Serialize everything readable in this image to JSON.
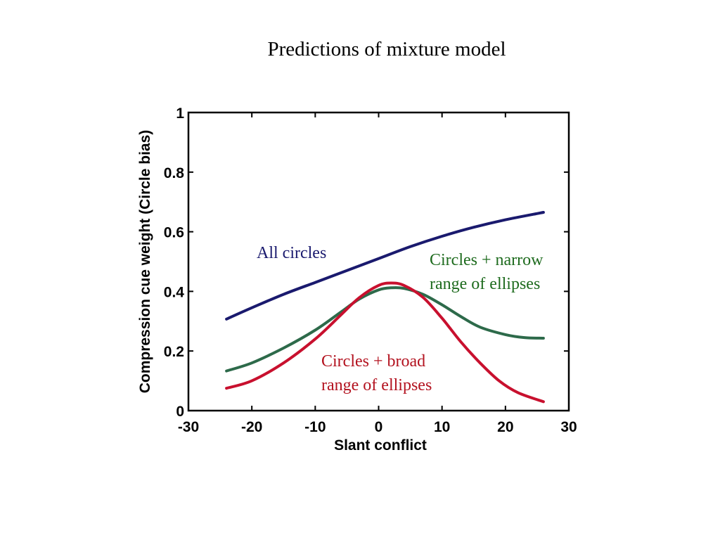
{
  "page": {
    "title": "Predictions of mixture model"
  },
  "chart_data": {
    "type": "line",
    "title": "Predictions of mixture model",
    "xlabel": "Slant conflict",
    "ylabel": "Compression cue weight (Circle bias)",
    "xlim": [
      -30,
      30
    ],
    "ylim": [
      0,
      1
    ],
    "xticks": [
      -30,
      -20,
      -10,
      0,
      10,
      20,
      30
    ],
    "yticks": [
      0,
      0.2,
      0.4,
      0.6,
      0.8,
      1
    ],
    "xtick_labels": [
      "-30",
      "-20",
      "-10",
      "0",
      "10",
      "20",
      "30"
    ],
    "ytick_labels": [
      "0",
      "0.2",
      "0.4",
      "0.6",
      "0.8",
      "1"
    ],
    "grid": false,
    "legend": "none",
    "series": [
      {
        "name": "All circles",
        "color": "#1a1a6e",
        "x": [
          -24,
          -20,
          -15,
          -10,
          -5,
          0,
          5,
          10,
          15,
          20,
          26
        ],
        "y": [
          0.307,
          0.345,
          0.39,
          0.43,
          0.47,
          0.51,
          0.55,
          0.585,
          0.615,
          0.64,
          0.665
        ]
      },
      {
        "name": "Circles + narrow range of ellipses",
        "color": "#2d6a4a",
        "x": [
          -24,
          -20,
          -15,
          -10,
          -6,
          -3,
          0,
          2,
          4,
          7,
          10,
          13,
          16,
          20,
          23,
          26
        ],
        "y": [
          0.133,
          0.16,
          0.21,
          0.27,
          0.33,
          0.375,
          0.405,
          0.412,
          0.41,
          0.39,
          0.355,
          0.315,
          0.28,
          0.255,
          0.245,
          0.243
        ]
      },
      {
        "name": "Circles + broad range of ellipses",
        "color": "#c8102e",
        "x": [
          -24,
          -20,
          -15,
          -10,
          -6,
          -3,
          0,
          2,
          4,
          7,
          10,
          13,
          16,
          19,
          22,
          26
        ],
        "y": [
          0.075,
          0.1,
          0.16,
          0.24,
          0.32,
          0.38,
          0.42,
          0.428,
          0.42,
          0.38,
          0.31,
          0.23,
          0.16,
          0.1,
          0.06,
          0.03
        ]
      }
    ],
    "annotations": [
      {
        "text": "All circles",
        "lines": [
          "All circles"
        ],
        "color": "#1a1a6e"
      },
      {
        "text": "Circles + narrow range of ellipses",
        "lines": [
          "Circles + narrow",
          "range of ellipses"
        ],
        "color": "#1e6b1e"
      },
      {
        "text": "Circles + broad range of ellipses",
        "lines": [
          "Circles + broad",
          "range of ellipses"
        ],
        "color": "#b3121f"
      }
    ]
  }
}
